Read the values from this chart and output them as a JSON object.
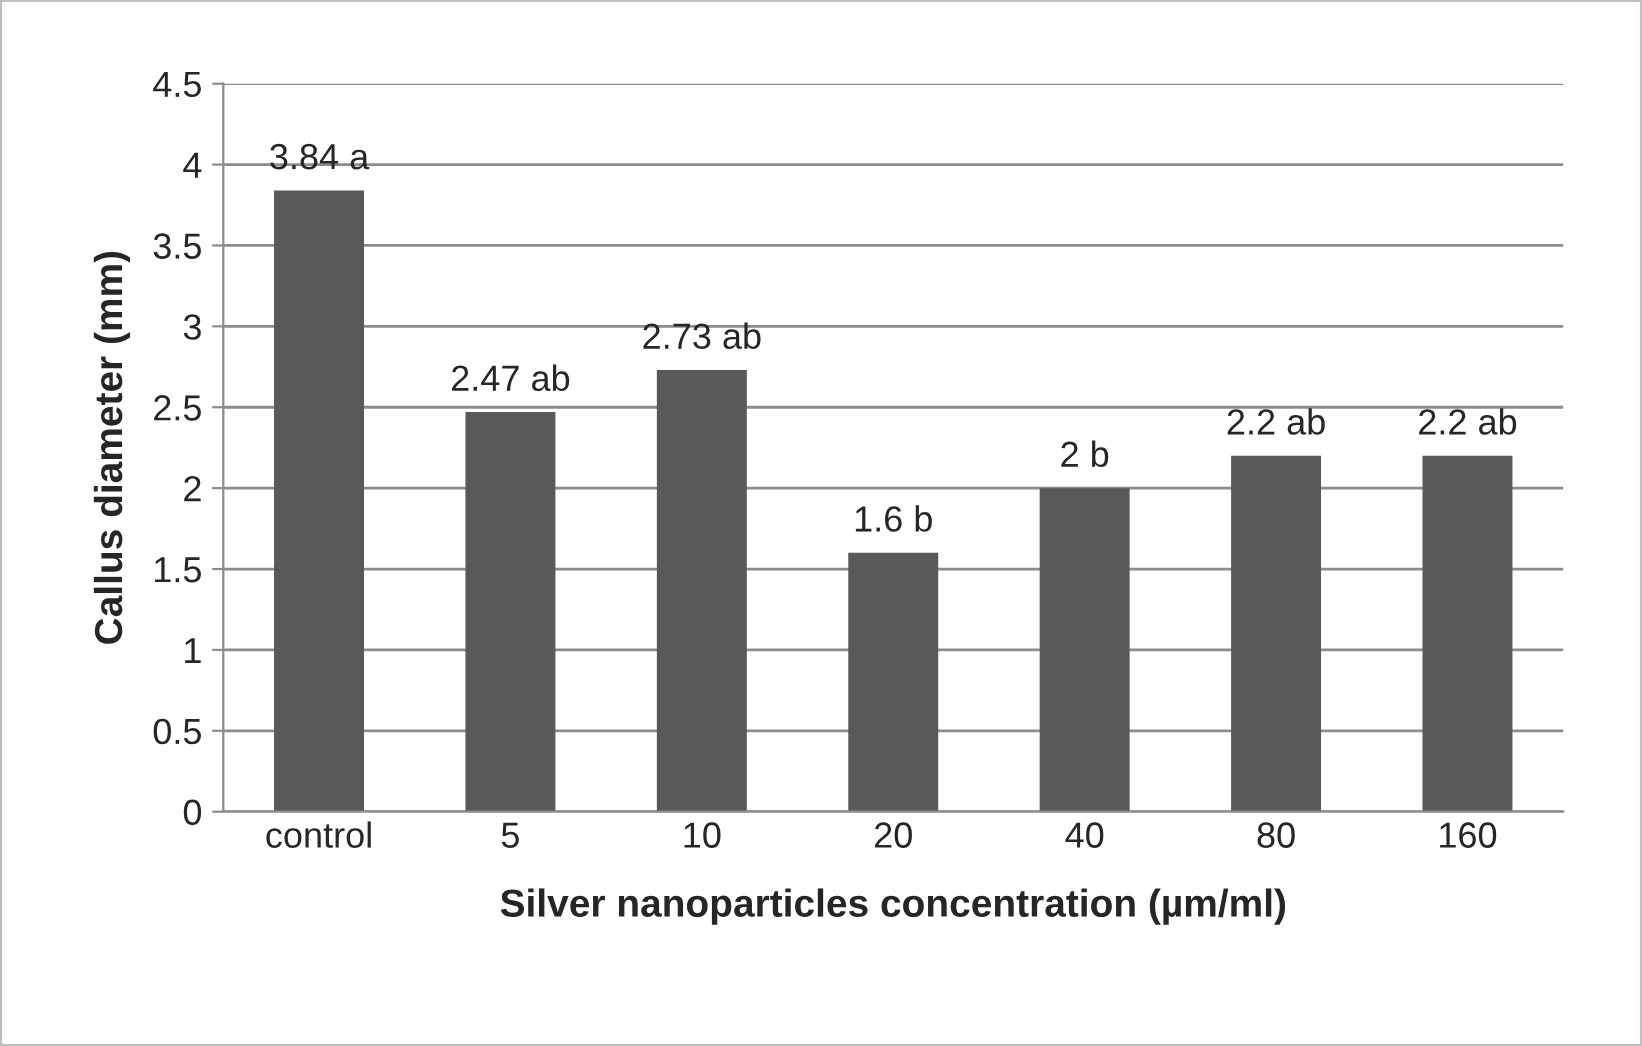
{
  "chart_data": {
    "type": "bar",
    "xlabel": "Silver nanoparticles concentration (µm/ml)",
    "ylabel": "Callus diameter (mm)",
    "categories": [
      "control",
      "5",
      "10",
      "20",
      "40",
      "80",
      "160"
    ],
    "values": [
      3.84,
      2.47,
      2.73,
      1.6,
      2,
      2.2,
      2.2
    ],
    "value_labels": [
      "3.84 a",
      "2.47 ab",
      "2.73 ab",
      "1.6 b",
      "2 b",
      "2.2 ab",
      "2.2 ab"
    ],
    "color": "#595959",
    "ylim": [
      0,
      4.5
    ],
    "yticks": [
      0,
      0.5,
      1,
      1.5,
      2,
      2.5,
      3,
      3.5,
      4,
      4.5
    ],
    "grid": "y",
    "legend": false
  }
}
